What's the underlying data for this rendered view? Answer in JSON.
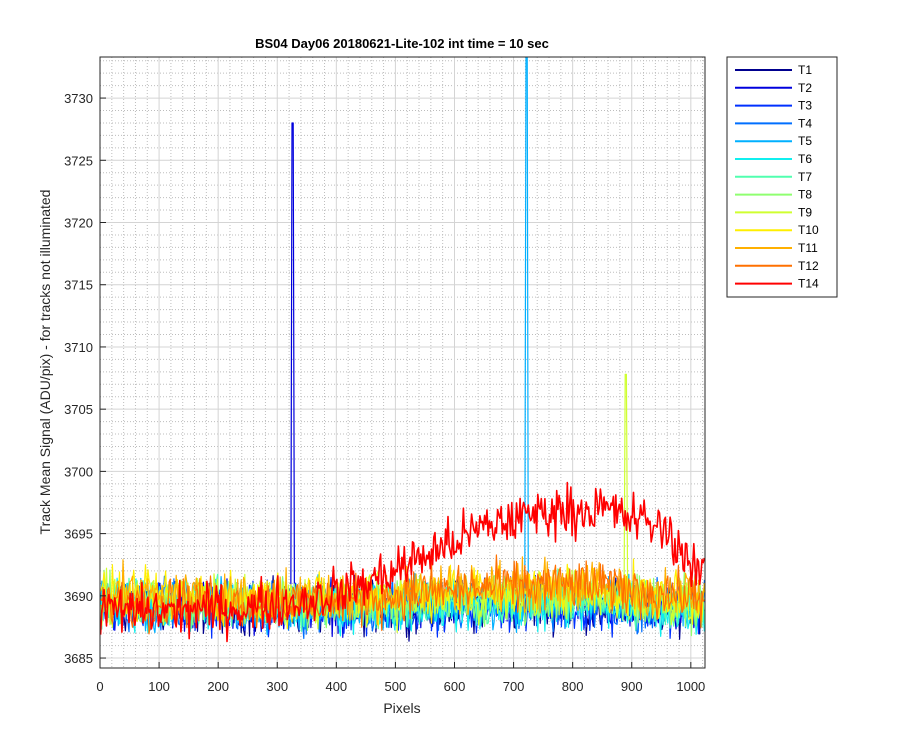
{
  "chart_data": {
    "type": "line",
    "title": "BS04 Day06 20180621-Lite-102 int time = 10 sec",
    "xlabel": "Pixels",
    "ylabel": "Track Mean Signal (ADU/pix) - for tracks not illuminated",
    "xlim": [
      0,
      1024
    ],
    "ylim": [
      3684.2,
      3733.3
    ],
    "xticks": [
      0,
      100,
      200,
      300,
      400,
      500,
      600,
      700,
      800,
      900,
      1000
    ],
    "yticks": [
      3685,
      3690,
      3695,
      3700,
      3705,
      3710,
      3715,
      3720,
      3725,
      3730
    ],
    "grid": "major and minor",
    "legend_position": "outside-top-right",
    "noise_amplitude": 1.5,
    "series": [
      {
        "name": "T1",
        "color": "#00008f",
        "profile": {
          "x": [
            0,
            400,
            600,
            800,
            1024
          ],
          "y": [
            3689.0,
            3689.0,
            3689.2,
            3689.2,
            3689.0
          ]
        },
        "spikes": []
      },
      {
        "name": "T2",
        "color": "#0000dd",
        "profile": {
          "x": [
            0,
            400,
            600,
            800,
            1024
          ],
          "y": [
            3689.3,
            3689.1,
            3689.3,
            3689.4,
            3689.0
          ]
        },
        "spikes": [
          {
            "x": 326,
            "y": 3728.0
          }
        ]
      },
      {
        "name": "T3",
        "color": "#0030ff",
        "profile": {
          "x": [
            0,
            400,
            600,
            800,
            1024
          ],
          "y": [
            3689.1,
            3689.0,
            3689.2,
            3689.2,
            3689.0
          ]
        },
        "spikes": []
      },
      {
        "name": "T4",
        "color": "#006fff",
        "profile": {
          "x": [
            0,
            400,
            600,
            800,
            1024
          ],
          "y": [
            3689.2,
            3689.0,
            3689.3,
            3689.3,
            3689.1
          ]
        },
        "spikes": []
      },
      {
        "name": "T5",
        "color": "#00b0ff",
        "profile": {
          "x": [
            0,
            400,
            600,
            800,
            1024
          ],
          "y": [
            3689.3,
            3689.2,
            3689.4,
            3689.5,
            3689.2
          ]
        },
        "spikes": [
          {
            "x": 722,
            "y": 3734.0
          }
        ]
      },
      {
        "name": "T6",
        "color": "#10efef",
        "profile": {
          "x": [
            0,
            400,
            600,
            800,
            1024
          ],
          "y": [
            3689.2,
            3689.1,
            3689.3,
            3689.3,
            3689.0
          ]
        },
        "spikes": []
      },
      {
        "name": "T7",
        "color": "#50ffaf",
        "profile": {
          "x": [
            0,
            400,
            600,
            800,
            1024
          ],
          "y": [
            3689.4,
            3689.3,
            3689.6,
            3689.7,
            3689.2
          ]
        },
        "spikes": []
      },
      {
        "name": "T8",
        "color": "#8fff70",
        "profile": {
          "x": [
            0,
            400,
            600,
            800,
            1024
          ],
          "y": [
            3689.5,
            3689.4,
            3689.8,
            3689.9,
            3689.3
          ]
        },
        "spikes": []
      },
      {
        "name": "T9",
        "color": "#cfff30",
        "profile": {
          "x": [
            0,
            400,
            600,
            800,
            1024
          ],
          "y": [
            3689.6,
            3689.5,
            3690.0,
            3690.2,
            3689.4
          ]
        },
        "spikes": [
          {
            "x": 890,
            "y": 3707.8
          }
        ]
      },
      {
        "name": "T10",
        "color": "#ffef00",
        "profile": {
          "x": [
            0,
            400,
            600,
            800,
            1024
          ],
          "y": [
            3690.0,
            3689.8,
            3690.4,
            3690.6,
            3689.6
          ]
        },
        "spikes": []
      },
      {
        "name": "T11",
        "color": "#ffb000",
        "profile": {
          "x": [
            0,
            400,
            600,
            800,
            1024
          ],
          "y": [
            3690.1,
            3689.9,
            3690.7,
            3690.9,
            3689.8
          ]
        },
        "spikes": []
      },
      {
        "name": "T12",
        "color": "#ff7000",
        "profile": {
          "x": [
            0,
            400,
            600,
            800,
            1024
          ],
          "y": [
            3689.5,
            3689.5,
            3690.5,
            3691.0,
            3689.8
          ]
        },
        "spikes": []
      },
      {
        "name": "T14",
        "color": "#ff0000",
        "profile": {
          "x": [
            0,
            100,
            250,
            350,
            450,
            550,
            650,
            750,
            850,
            950,
            1024
          ],
          "y": [
            3688.8,
            3688.8,
            3689.0,
            3689.6,
            3691.0,
            3693.2,
            3695.5,
            3696.8,
            3697.0,
            3695.5,
            3691.5
          ]
        },
        "spikes": []
      }
    ]
  }
}
